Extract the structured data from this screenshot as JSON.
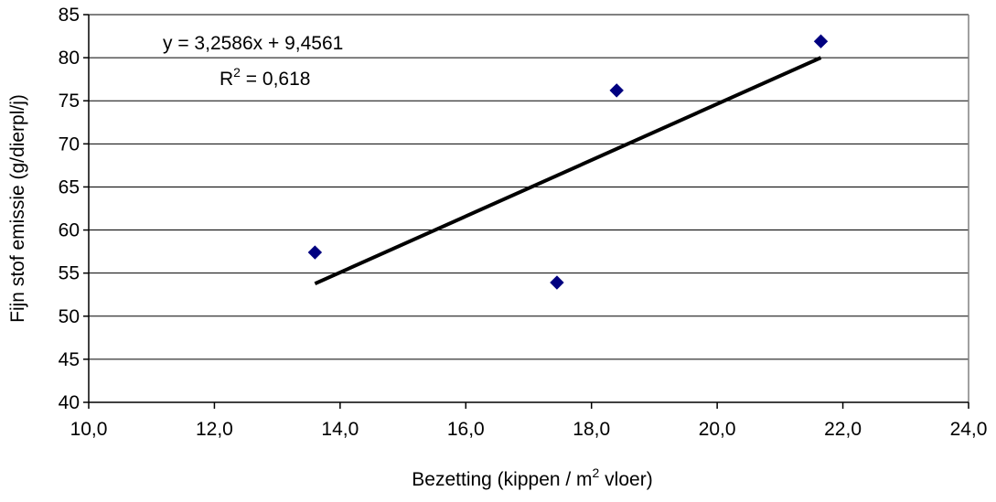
{
  "chart_data": {
    "type": "scatter",
    "title": "",
    "xlabel": "Bezetting (kippen / m",
    "xlabel_sup": "2",
    "xlabel_suffix": " vloer)",
    "ylabel": "Fijn stof emissie (g/dierpl/j)",
    "xlim": [
      10,
      24
    ],
    "ylim": [
      40,
      85
    ],
    "x_ticks": [
      10,
      12,
      14,
      16,
      18,
      20,
      22,
      24
    ],
    "x_tick_labels": [
      "10,0",
      "12,0",
      "14,0",
      "16,0",
      "18,0",
      "20,0",
      "22,0",
      "24,0"
    ],
    "y_ticks": [
      40,
      45,
      50,
      55,
      60,
      65,
      70,
      75,
      80,
      85
    ],
    "y_tick_labels": [
      "40",
      "45",
      "50",
      "55",
      "60",
      "65",
      "70",
      "75",
      "80",
      "85"
    ],
    "grid": "horizontal",
    "legend": "none",
    "series": [
      {
        "x": [
          13.6,
          17.45,
          18.4,
          21.65
        ],
        "y": [
          57.4,
          53.9,
          76.2,
          81.9
        ],
        "marker": "diamond",
        "color": "#000080"
      }
    ],
    "trendline": {
      "x_start": 13.6,
      "x_end": 21.65,
      "slope": 3.2586,
      "intercept": 9.4561,
      "color": "#000000"
    },
    "annotations": {
      "equation": "y = 3,2586x + 9,4561",
      "r2_label": "R",
      "r2_sup": "2",
      "r2_value": " = 0,618"
    }
  }
}
